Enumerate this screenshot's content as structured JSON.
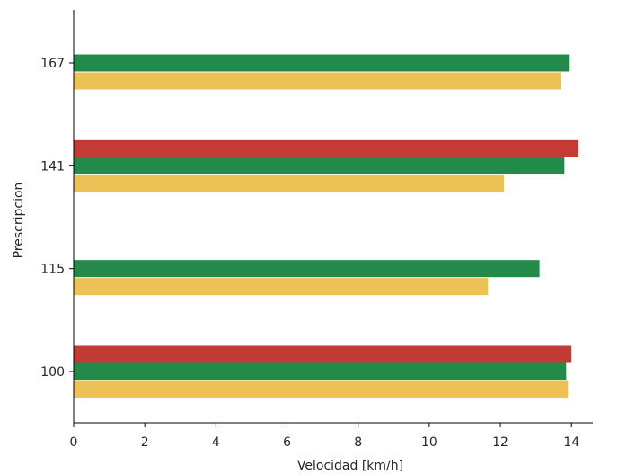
{
  "chart_data": {
    "type": "bar",
    "orientation": "horizontal",
    "xlabel": "Velocidad [km/h]",
    "ylabel": "Prescripcion",
    "categories": [
      "100",
      "115",
      "141",
      "167"
    ],
    "xlim": [
      0,
      14.6
    ],
    "x_ticks": [
      0,
      2,
      4,
      6,
      8,
      10,
      12,
      14
    ],
    "grid": false,
    "legend": "none",
    "series": [
      {
        "color": "#ecc155",
        "values": [
          13.9,
          11.65,
          12.1,
          13.7
        ]
      },
      {
        "color": "#228b4a",
        "values": [
          13.85,
          13.1,
          13.8,
          13.95
        ]
      },
      {
        "color": "#c43a35",
        "values": [
          14.0,
          null,
          14.2,
          null
        ]
      }
    ]
  }
}
